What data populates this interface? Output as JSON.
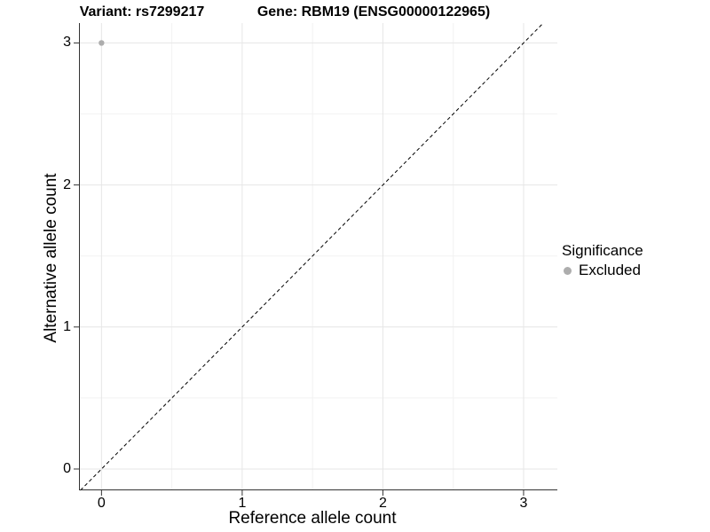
{
  "chart_data": {
    "type": "scatter",
    "titles": {
      "left": "Variant: rs7299217",
      "right": "Gene: RBM19 (ENSG00000122965)"
    },
    "xlabel": "Reference allele count",
    "ylabel": "Alternative allele count",
    "xlim": [
      -0.16,
      3.24
    ],
    "ylim": [
      -0.15,
      3.14
    ],
    "xticks": [
      "0",
      "1",
      "2",
      "3"
    ],
    "yticks": [
      "0",
      "1",
      "2",
      "3"
    ],
    "grid": {
      "on": true,
      "major_color": "#e6e6e6",
      "minor_color": "#f2f2f2",
      "minor_x": [
        0.5,
        1.5,
        2.5
      ],
      "minor_y": [
        0.5,
        1.5,
        2.5
      ]
    },
    "axis_color": "#333333",
    "identity_line": {
      "style": "dashed",
      "color": "#000000",
      "from": [
        -0.15,
        -0.15
      ],
      "to": [
        3.14,
        3.14
      ]
    },
    "series": [
      {
        "name": "Excluded",
        "color": "#adadad",
        "point_radius": 3.2,
        "points": [
          [
            0,
            3
          ]
        ]
      }
    ],
    "legend": {
      "title": "Significance",
      "position": "right",
      "items": [
        {
          "label": "Excluded",
          "color": "#adadad"
        }
      ]
    }
  }
}
